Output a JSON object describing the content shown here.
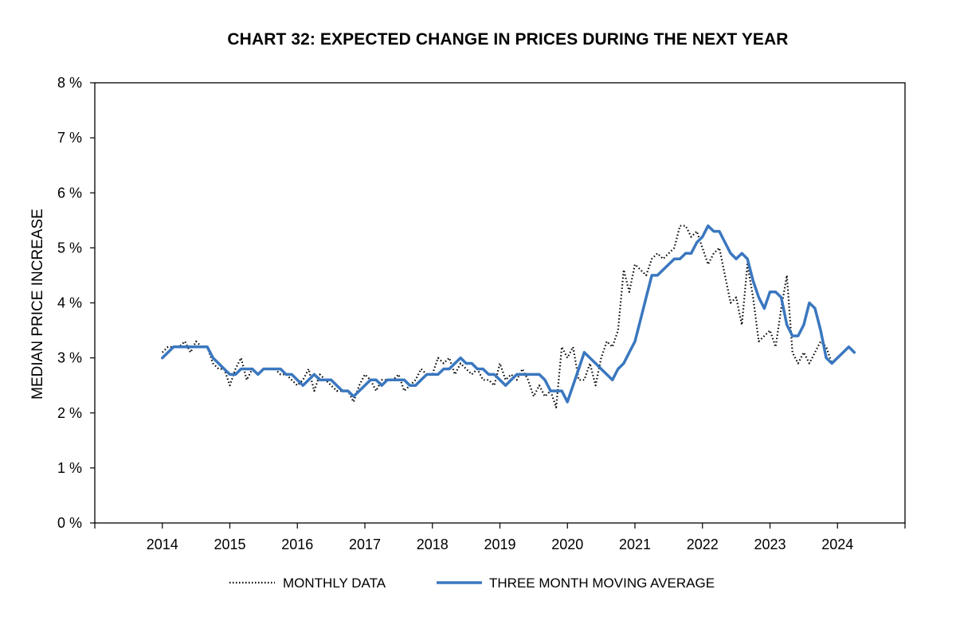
{
  "chart_data": {
    "type": "line",
    "title": "CHART 32: EXPECTED CHANGE IN PRICES DURING THE NEXT YEAR",
    "xlabel": "",
    "ylabel": "MEDIAN PRICE INCREASE",
    "ylim": [
      0,
      8
    ],
    "xlim": [
      2013,
      2025
    ],
    "y_ticks": [
      0,
      1,
      2,
      3,
      4,
      5,
      6,
      7,
      8
    ],
    "y_tick_labels": [
      "0 %",
      "1 %",
      "2 %",
      "3 %",
      "4 %",
      "5 %",
      "6 %",
      "7 %",
      "8 %"
    ],
    "x_tick_labels": [
      "2014",
      "2015",
      "2016",
      "2017",
      "2018",
      "2019",
      "2020",
      "2021",
      "2022",
      "2023",
      "2024"
    ],
    "x_tick_values": [
      2014,
      2015,
      2016,
      2017,
      2018,
      2019,
      2020,
      2021,
      2022,
      2023,
      2024
    ],
    "grid": false,
    "legend_position": "bottom",
    "x_start": 2014,
    "x_step": 0.0833333,
    "series": [
      {
        "name": "MONTHLY DATA",
        "style": "dotted",
        "color": "#000000",
        "values": [
          3.1,
          3.2,
          3.2,
          3.2,
          3.3,
          3.1,
          3.3,
          3.2,
          3.2,
          2.9,
          2.8,
          2.8,
          2.5,
          2.8,
          3.0,
          2.6,
          2.8,
          2.7,
          2.8,
          2.8,
          2.8,
          2.7,
          2.7,
          2.6,
          2.5,
          2.6,
          2.8,
          2.4,
          2.7,
          2.6,
          2.5,
          2.4,
          2.4,
          2.4,
          2.2,
          2.5,
          2.7,
          2.6,
          2.4,
          2.6,
          2.6,
          2.6,
          2.7,
          2.4,
          2.5,
          2.6,
          2.8,
          2.7,
          2.7,
          3.0,
          2.9,
          3.0,
          2.7,
          2.9,
          2.8,
          2.7,
          2.8,
          2.6,
          2.6,
          2.5,
          2.9,
          2.6,
          2.7,
          2.6,
          2.8,
          2.6,
          2.3,
          2.5,
          2.3,
          2.4,
          2.1,
          3.2,
          3.0,
          3.2,
          2.6,
          2.6,
          2.9,
          2.5,
          3.0,
          3.3,
          3.2,
          3.5,
          4.6,
          4.2,
          4.7,
          4.6,
          4.5,
          4.8,
          4.9,
          4.8,
          4.9,
          5.0,
          5.4,
          5.4,
          5.2,
          5.3,
          5.0,
          4.7,
          4.9,
          5.0,
          4.5,
          4.0,
          4.1,
          3.6,
          4.7,
          4.1,
          3.3,
          3.4,
          3.5,
          3.2,
          3.9,
          4.5,
          3.1,
          2.9,
          3.1,
          2.9,
          3.1,
          3.3,
          3.2,
          2.9
        ]
      },
      {
        "name": "THREE MONTH MOVING AVERAGE",
        "style": "solid",
        "color": "#3a77bf",
        "values": [
          3.0,
          3.1,
          3.2,
          3.2,
          3.2,
          3.2,
          3.2,
          3.2,
          3.2,
          3.0,
          2.9,
          2.8,
          2.7,
          2.7,
          2.8,
          2.8,
          2.8,
          2.7,
          2.8,
          2.8,
          2.8,
          2.8,
          2.7,
          2.7,
          2.6,
          2.5,
          2.6,
          2.7,
          2.6,
          2.6,
          2.6,
          2.5,
          2.4,
          2.4,
          2.3,
          2.4,
          2.5,
          2.6,
          2.6,
          2.5,
          2.6,
          2.6,
          2.6,
          2.6,
          2.5,
          2.5,
          2.6,
          2.7,
          2.7,
          2.7,
          2.8,
          2.8,
          2.9,
          3.0,
          2.9,
          2.9,
          2.8,
          2.8,
          2.7,
          2.7,
          2.6,
          2.5,
          2.6,
          2.7,
          2.7,
          2.7,
          2.7,
          2.7,
          2.6,
          2.4,
          2.4,
          2.4,
          2.2,
          2.5,
          2.8,
          3.1,
          3.0,
          2.9,
          2.8,
          2.7,
          2.6,
          2.8,
          2.9,
          3.1,
          3.3,
          3.7,
          4.1,
          4.5,
          4.5,
          4.6,
          4.7,
          4.8,
          4.8,
          4.9,
          4.9,
          5.1,
          5.2,
          5.4,
          5.3,
          5.3,
          5.1,
          4.9,
          4.8,
          4.9,
          4.8,
          4.4,
          4.1,
          3.9,
          4.2,
          4.2,
          4.1,
          3.6,
          3.4,
          3.4,
          3.6,
          4.0,
          3.9,
          3.5,
          3.0,
          2.9,
          3.0,
          3.1,
          3.2,
          3.1
        ]
      }
    ]
  }
}
